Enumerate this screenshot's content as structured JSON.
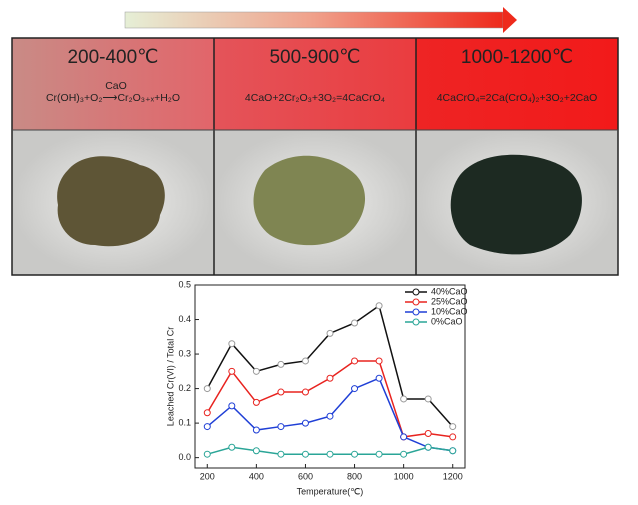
{
  "panels": [
    {
      "temperature": "200-400℃",
      "reaction": "Cr(OH)₃+O₂⟶Cr₂O₃₊ₓ+H₂O",
      "over_arrow": "CaO"
    },
    {
      "temperature": "500-900℃",
      "reaction": "4CaO+2Cr₂O₃+3O₂=4CaCrO₄"
    },
    {
      "temperature": "1000-1200℃",
      "reaction": "4CaCrO₄=2Ca(CrO₄)₂+3O₂+2CaO"
    }
  ],
  "chart_data": {
    "type": "line",
    "x_label": "Temperature(℃)",
    "y_label": "Leached Cr(VI) / Total Cr",
    "x": [
      200,
      300,
      400,
      500,
      600,
      700,
      800,
      900,
      1000,
      1100,
      1200
    ],
    "series": [
      {
        "name": "40%CaO",
        "color": "#111111",
        "values": [
          0.2,
          0.33,
          0.25,
          0.27,
          0.28,
          0.36,
          0.39,
          0.44,
          0.17,
          0.17,
          0.09
        ]
      },
      {
        "name": "25%CaO",
        "color": "#e8231f",
        "values": [
          0.13,
          0.25,
          0.16,
          0.19,
          0.19,
          0.23,
          0.28,
          0.28,
          0.06,
          0.07,
          0.06
        ]
      },
      {
        "name": "10%CaO",
        "color": "#1f3fd6",
        "values": [
          0.09,
          0.15,
          0.08,
          0.09,
          0.1,
          0.12,
          0.2,
          0.23,
          0.06,
          0.03,
          0.02
        ]
      },
      {
        "name": "0%CaO",
        "color": "#2aa597",
        "values": [
          0.01,
          0.03,
          0.02,
          0.01,
          0.01,
          0.01,
          0.01,
          0.01,
          0.01,
          0.03,
          0.02
        ]
      }
    ],
    "xlim": [
      150,
      1250
    ],
    "xticks": [
      200,
      400,
      600,
      800,
      1000,
      1200
    ],
    "ylim": [
      -0.03,
      0.5
    ],
    "yticks": [
      {
        "value": 0,
        "label": "0.0"
      },
      0.1,
      0.2,
      0.3,
      0.4,
      0.5
    ]
  }
}
